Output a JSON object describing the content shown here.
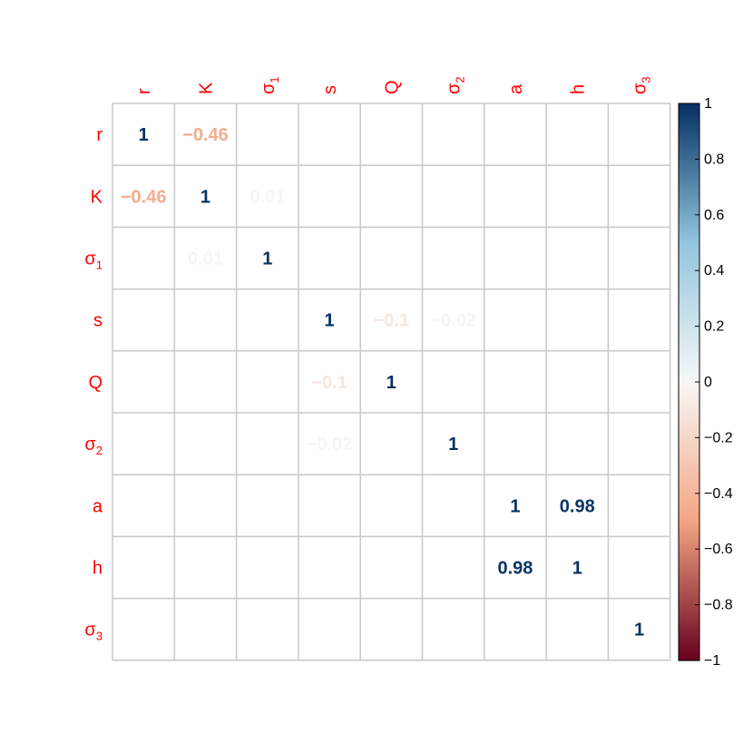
{
  "chart_data": {
    "type": "heatmap",
    "variables": [
      {
        "base": "r",
        "sub": ""
      },
      {
        "base": "K",
        "sub": ""
      },
      {
        "base": "σ",
        "sub": "1"
      },
      {
        "base": "s",
        "sub": ""
      },
      {
        "base": "Q",
        "sub": ""
      },
      {
        "base": "σ",
        "sub": "2"
      },
      {
        "base": "a",
        "sub": ""
      },
      {
        "base": "h",
        "sub": ""
      },
      {
        "base": "σ",
        "sub": "3"
      }
    ],
    "matrix": [
      [
        1,
        -0.46,
        0,
        0,
        0,
        0,
        0,
        0,
        0
      ],
      [
        -0.46,
        1,
        0.01,
        0,
        0,
        0,
        0,
        0,
        0
      ],
      [
        0,
        0.01,
        1,
        0,
        0,
        0,
        0,
        0,
        0
      ],
      [
        0,
        0,
        0,
        1,
        -0.1,
        -0.02,
        0,
        0,
        0
      ],
      [
        0,
        0,
        0,
        -0.1,
        1,
        0,
        0,
        0,
        0
      ],
      [
        0,
        0,
        0,
        -0.02,
        0,
        1,
        0,
        0,
        0
      ],
      [
        0,
        0,
        0,
        0,
        0,
        0,
        1,
        0.98,
        0
      ],
      [
        0,
        0,
        0,
        0,
        0,
        0,
        0.98,
        1,
        0
      ],
      [
        0,
        0,
        0,
        0,
        0,
        0,
        0,
        0,
        1
      ]
    ],
    "labels": [
      [
        "1",
        "−0.46",
        "",
        "",
        "",
        "",
        "",
        "",
        ""
      ],
      [
        "−0.46",
        "1",
        "0.01",
        "",
        "",
        "",
        "",
        "",
        ""
      ],
      [
        "",
        "0.01",
        "1",
        "",
        "",
        "",
        "",
        "",
        ""
      ],
      [
        "",
        "",
        "",
        "1",
        "−0.1",
        "−0.02",
        "",
        "",
        ""
      ],
      [
        "",
        "",
        "",
        "−0.1",
        "1",
        "",
        "",
        "",
        ""
      ],
      [
        "",
        "",
        "",
        "−0.02",
        "",
        "1",
        "",
        "",
        ""
      ],
      [
        "",
        "",
        "",
        "",
        "",
        "",
        "1",
        "0.98",
        ""
      ],
      [
        "",
        "",
        "",
        "",
        "",
        "",
        "0.98",
        "1",
        ""
      ],
      [
        "",
        "",
        "",
        "",
        "",
        "",
        "",
        "",
        "1"
      ]
    ],
    "colorbar": {
      "range": [
        -1,
        1
      ],
      "ticks": [
        "1",
        "0.8",
        "0.6",
        "0.4",
        "0.2",
        "0",
        "−0.2",
        "−0.4",
        "−0.6",
        "−0.8",
        "−1"
      ],
      "tick_values": [
        1,
        0.8,
        0.6,
        0.4,
        0.2,
        0,
        -0.2,
        -0.4,
        -0.6,
        -0.8,
        -1
      ]
    },
    "palette": {
      "negative_end": "#67001f",
      "mid_neg": "#f4a582",
      "neutral": "#f7f7f7",
      "mid_pos": "#92c5de",
      "positive_end": "#053061"
    },
    "label_color": "#ff0000",
    "grid_color": "#c8c8c8",
    "title": "",
    "xlabel": "",
    "ylabel": ""
  }
}
